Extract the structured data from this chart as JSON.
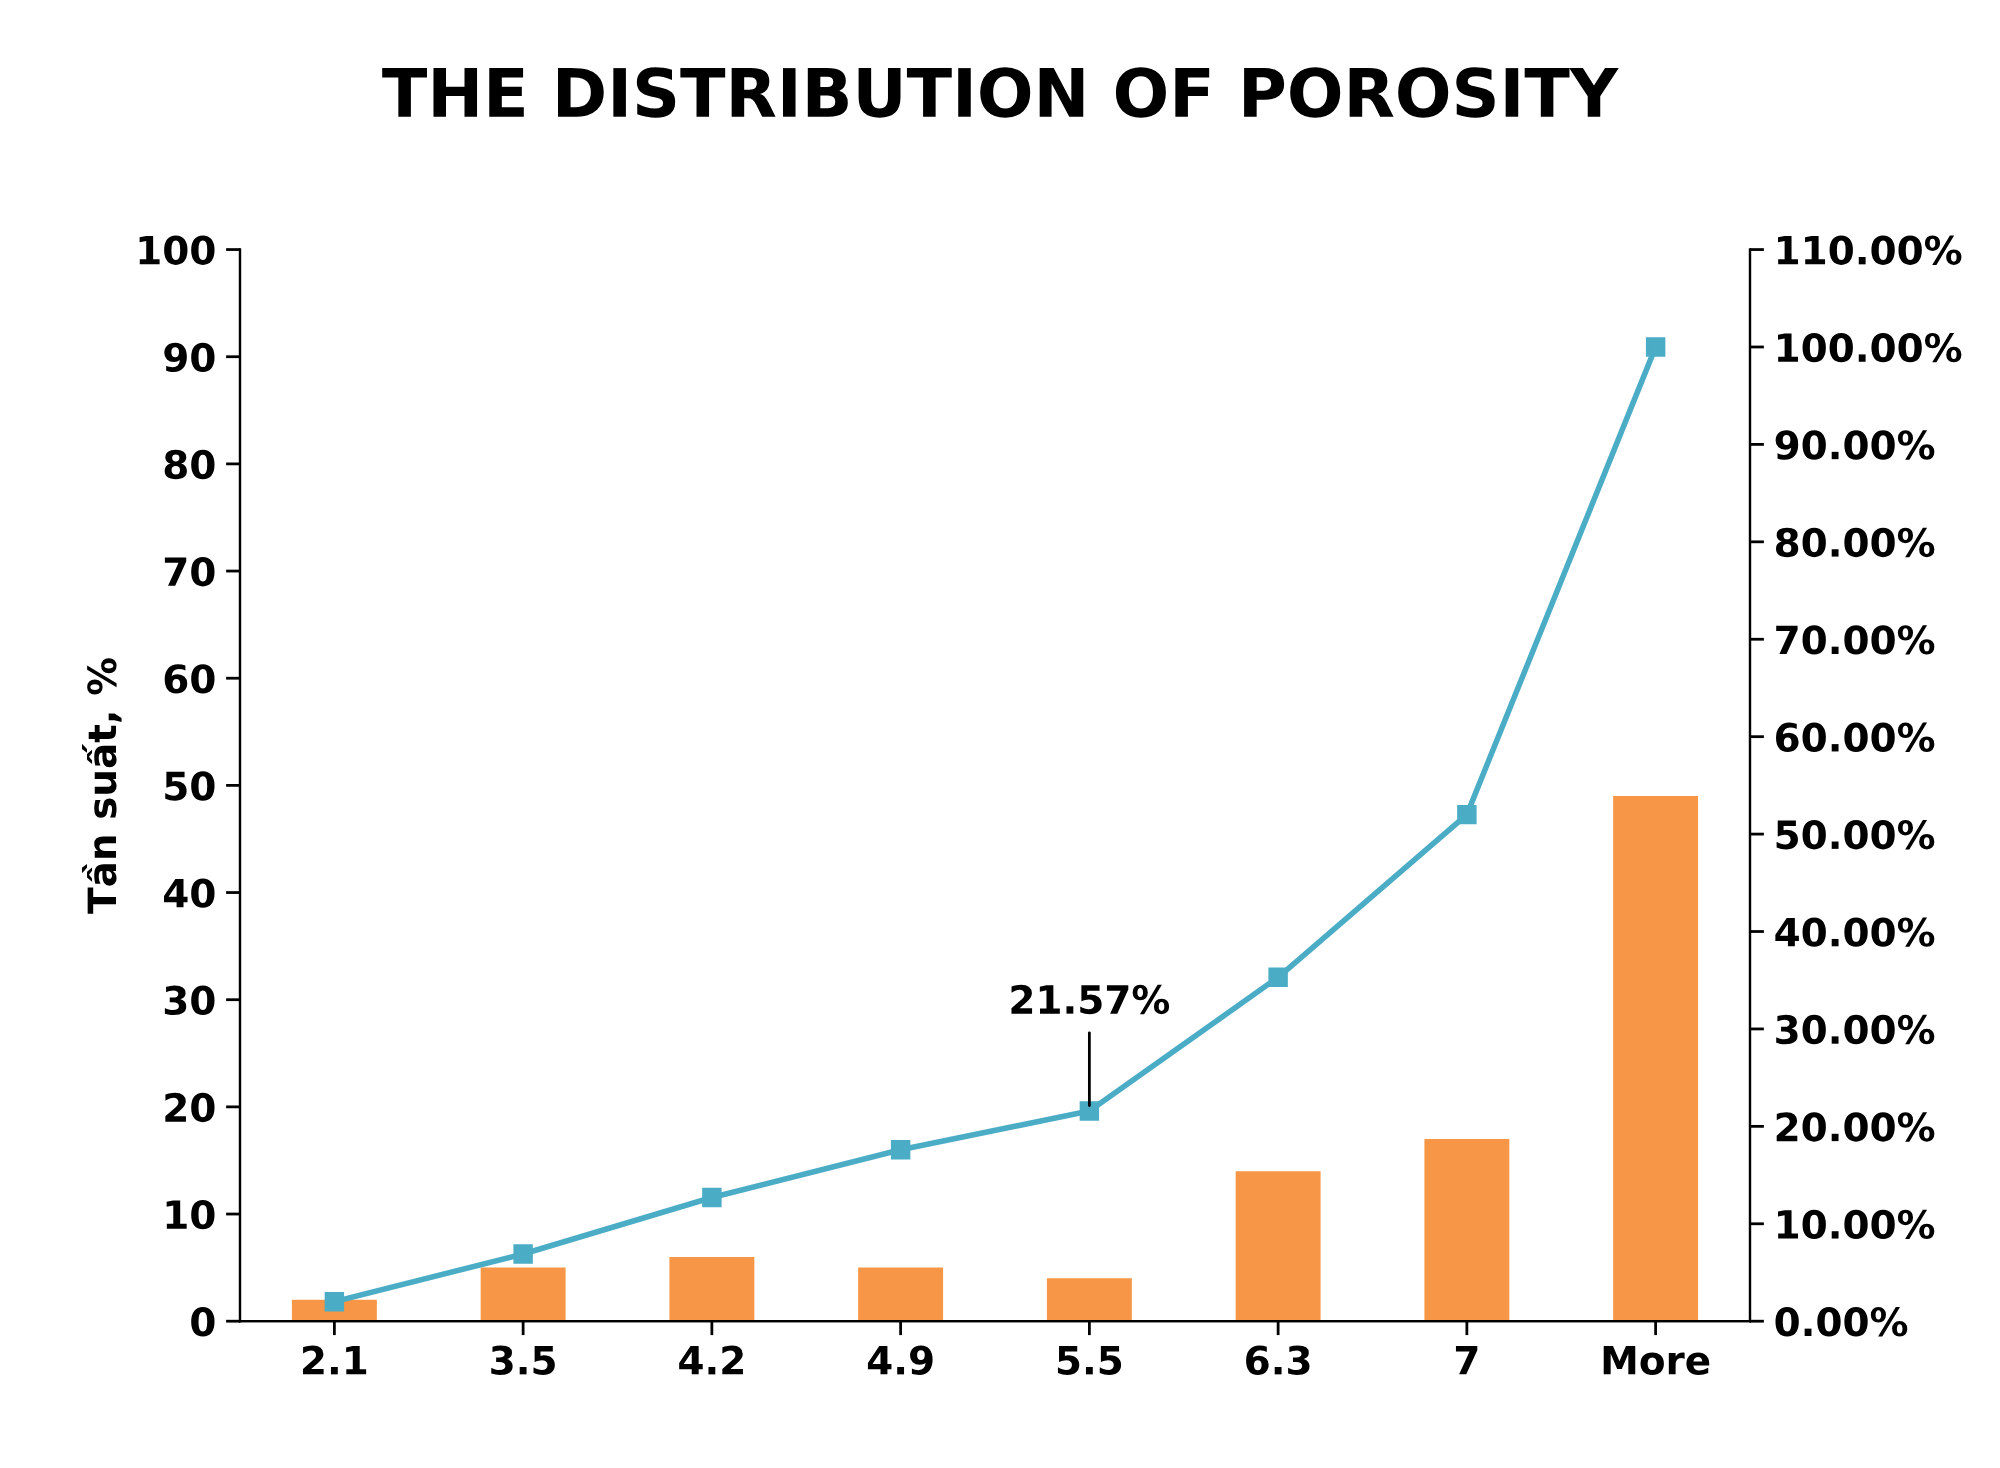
{
  "chart_data": {
    "type": "bar",
    "title": "THE DISTRIBUTION OF POROSITY",
    "ylabel": "Tần suất, %",
    "categories": [
      "2.1",
      "3.5",
      "4.2",
      "4.9",
      "5.5",
      "6.3",
      "7",
      "More"
    ],
    "series": [
      {
        "color": "#f79646",
        "values": [
          2,
          5,
          6,
          5,
          4,
          14,
          17,
          49
        ]
      },
      {
        "type": "line",
        "axis": "y2",
        "color": "#4bacc6",
        "marker": "square",
        "line_style": "solid",
        "values": [
          2,
          6.9,
          12.7,
          17.6,
          21.57,
          35.3,
          52,
          100
        ],
        "value_labels": [
          null,
          null,
          null,
          null,
          "21.57%",
          null,
          null,
          null
        ]
      }
    ],
    "ylim": [
      0,
      100
    ],
    "yticks": [
      0,
      10,
      20,
      30,
      40,
      50,
      60,
      70,
      80,
      90,
      100
    ],
    "y2lim": [
      0,
      110
    ],
    "y2ticks": [
      {
        "value": 0,
        "label": "0.00%"
      },
      {
        "value": 10,
        "label": "10.00%"
      },
      {
        "value": 20,
        "label": "20.00%"
      },
      {
        "value": 30,
        "label": "30.00%"
      },
      {
        "value": 40,
        "label": "40.00%"
      },
      {
        "value": 50,
        "label": "50.00%"
      },
      {
        "value": 60,
        "label": "60.00%"
      },
      {
        "value": 70,
        "label": "70.00%"
      },
      {
        "value": 80,
        "label": "80.00%"
      },
      {
        "value": 90,
        "label": "90.00%"
      },
      {
        "value": 100,
        "label": "100.00%"
      },
      {
        "value": 110,
        "label": "110.00%"
      }
    ],
    "grid": false,
    "legend": false
  }
}
